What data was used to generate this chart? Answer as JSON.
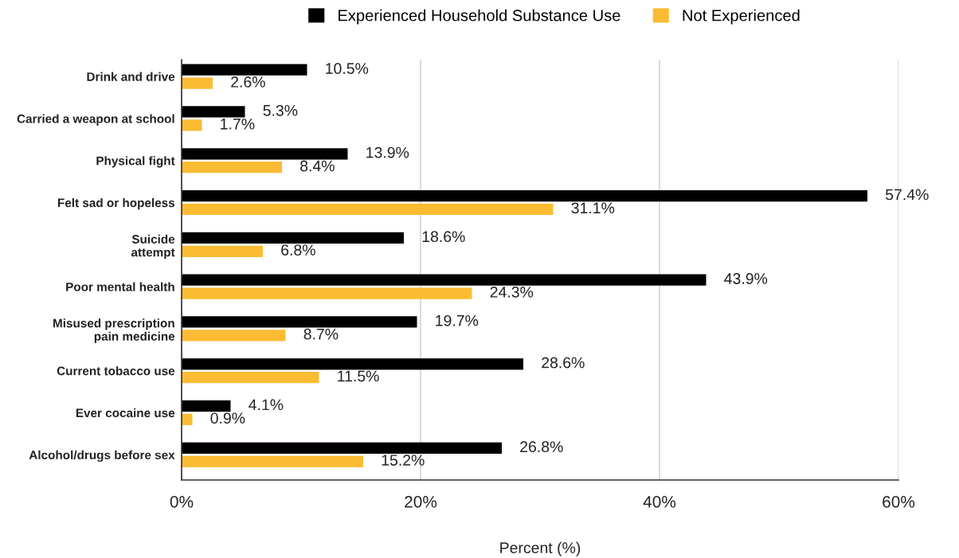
{
  "chart_data": {
    "type": "bar",
    "orientation": "horizontal",
    "categories": [
      "Drink and drive",
      "Carried a weapon at school",
      "Physical fight",
      "Felt sad or hopeless",
      "Suicide\nattempt",
      "Poor mental health",
      "Misused prescription\npain medicine",
      "Current tobacco use",
      "Ever cocaine use",
      "Alcohol/drugs before sex"
    ],
    "series": [
      {
        "name": "Experienced Household Substance Use",
        "color": "#000000",
        "values": [
          10.5,
          5.3,
          13.9,
          57.4,
          18.6,
          43.9,
          19.7,
          28.6,
          4.1,
          26.8
        ],
        "value_labels": [
          "10.5%",
          "5.3%",
          "13.9%",
          "57.4%",
          "18.6%",
          "43.9%",
          "19.7%",
          "28.6%",
          "4.1%",
          "26.8%"
        ]
      },
      {
        "name": "Not Experienced",
        "color": "#fbbc33",
        "values": [
          2.6,
          1.7,
          8.4,
          31.1,
          6.8,
          24.3,
          8.7,
          11.5,
          0.9,
          15.2
        ],
        "value_labels": [
          "2.6%",
          "1.7%",
          "8.4%",
          "31.1%",
          "6.8%",
          "24.3%",
          "8.7%",
          "11.5%",
          "0.9%",
          "15.2%"
        ]
      }
    ],
    "xlabel": "Percent (%)",
    "xlim": [
      0,
      60
    ],
    "xticks": [
      {
        "value": 0,
        "label": "0%"
      },
      {
        "value": 20,
        "label": "20%"
      },
      {
        "value": 40,
        "label": "40%"
      },
      {
        "value": 60,
        "label": "60%"
      }
    ],
    "grid": "x",
    "legend": "top"
  }
}
